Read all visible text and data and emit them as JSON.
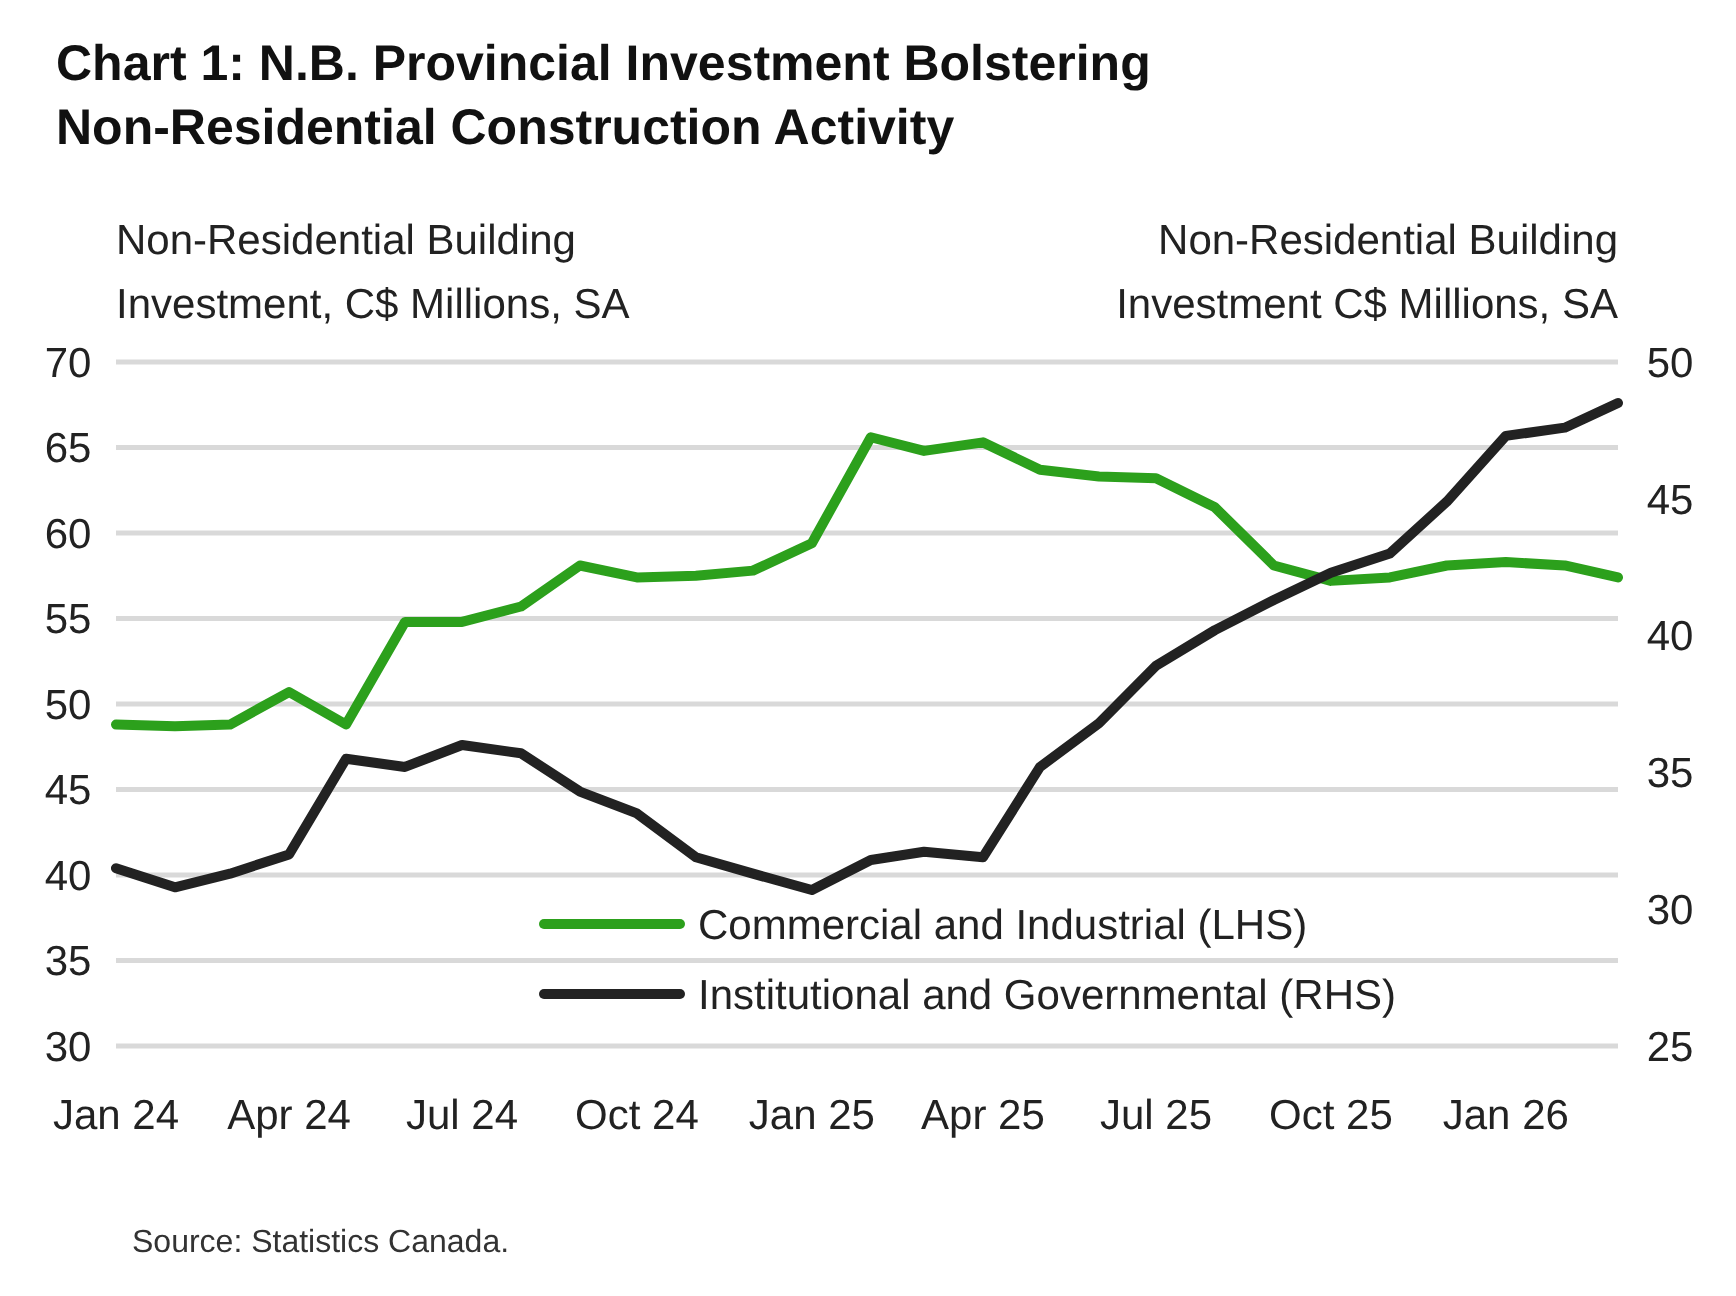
{
  "chart_data": {
    "type": "line",
    "title": "Chart 1: N.B. Provincial Investment Bolstering Non-Residential Construction Activity",
    "ylabel": "Non-Residential Building Investment, C$ Millions, SA",
    "y2label": "Non-Residential Building Investment C$ Millions, SA",
    "x": [
      "2024-01",
      "2024-02",
      "2024-03",
      "2024-04",
      "2024-05",
      "2024-06",
      "2024-07",
      "2024-08",
      "2024-09",
      "2024-10",
      "2024-11",
      "2024-12",
      "2025-01",
      "2025-02",
      "2025-03",
      "2025-04",
      "2025-05",
      "2025-06",
      "2025-07",
      "2025-08",
      "2025-09",
      "2025-10",
      "2025-11",
      "2025-12",
      "2026-01",
      "2026-02",
      "2026-03"
    ],
    "series": [
      {
        "name": "Commercial and Industrial (LHS)",
        "color": "#2ca01c",
        "values": [
          48.8,
          48.7,
          48.8,
          50.7,
          48.8,
          54.8,
          54.8,
          55.7,
          58.1,
          57.4,
          57.5,
          57.8,
          59.4,
          65.6,
          64.8,
          65.3,
          63.7,
          63.3,
          63.2,
          61.5,
          58.1,
          57.2,
          57.4,
          58.1,
          58.3,
          58.1,
          57.4
        ]
      },
      {
        "name": "Institutional and Governmental (RHS)",
        "color": "#222222",
        "axis": "y2",
        "values": [
          31.5,
          30.8,
          31.3,
          32.0,
          35.5,
          35.2,
          36.0,
          35.7,
          34.3,
          33.5,
          31.9,
          31.3,
          30.7,
          31.8,
          32.1,
          31.9,
          35.2,
          36.8,
          38.9,
          40.2,
          41.3,
          42.3,
          43.0,
          44.9,
          47.3,
          47.6,
          48.5
        ]
      }
    ],
    "xlim": [
      "2024-01",
      "2026-03"
    ],
    "xticks": [
      {
        "value": "2024-01",
        "label": "Jan 24"
      },
      {
        "value": "2024-04",
        "label": "Apr 24"
      },
      {
        "value": "2024-07",
        "label": "Jul 24"
      },
      {
        "value": "2024-10",
        "label": "Oct 24"
      },
      {
        "value": "2025-01",
        "label": "Jan 25"
      },
      {
        "value": "2025-04",
        "label": "Apr 25"
      },
      {
        "value": "2025-07",
        "label": "Jul 25"
      },
      {
        "value": "2025-10",
        "label": "Oct 25"
      },
      {
        "value": "2026-01",
        "label": "Jan 26"
      }
    ],
    "ylim": [
      30,
      70
    ],
    "yticks": [
      30,
      35,
      40,
      45,
      50,
      55,
      60,
      65,
      70
    ],
    "y2lim": [
      25,
      50
    ],
    "y2ticks": [
      25,
      30,
      35,
      40,
      45,
      50
    ],
    "grid": "y",
    "legend": "bottom right",
    "line_style": "solid",
    "marker": "none",
    "annotations": [
      "Source: Statistics Canada."
    ]
  }
}
